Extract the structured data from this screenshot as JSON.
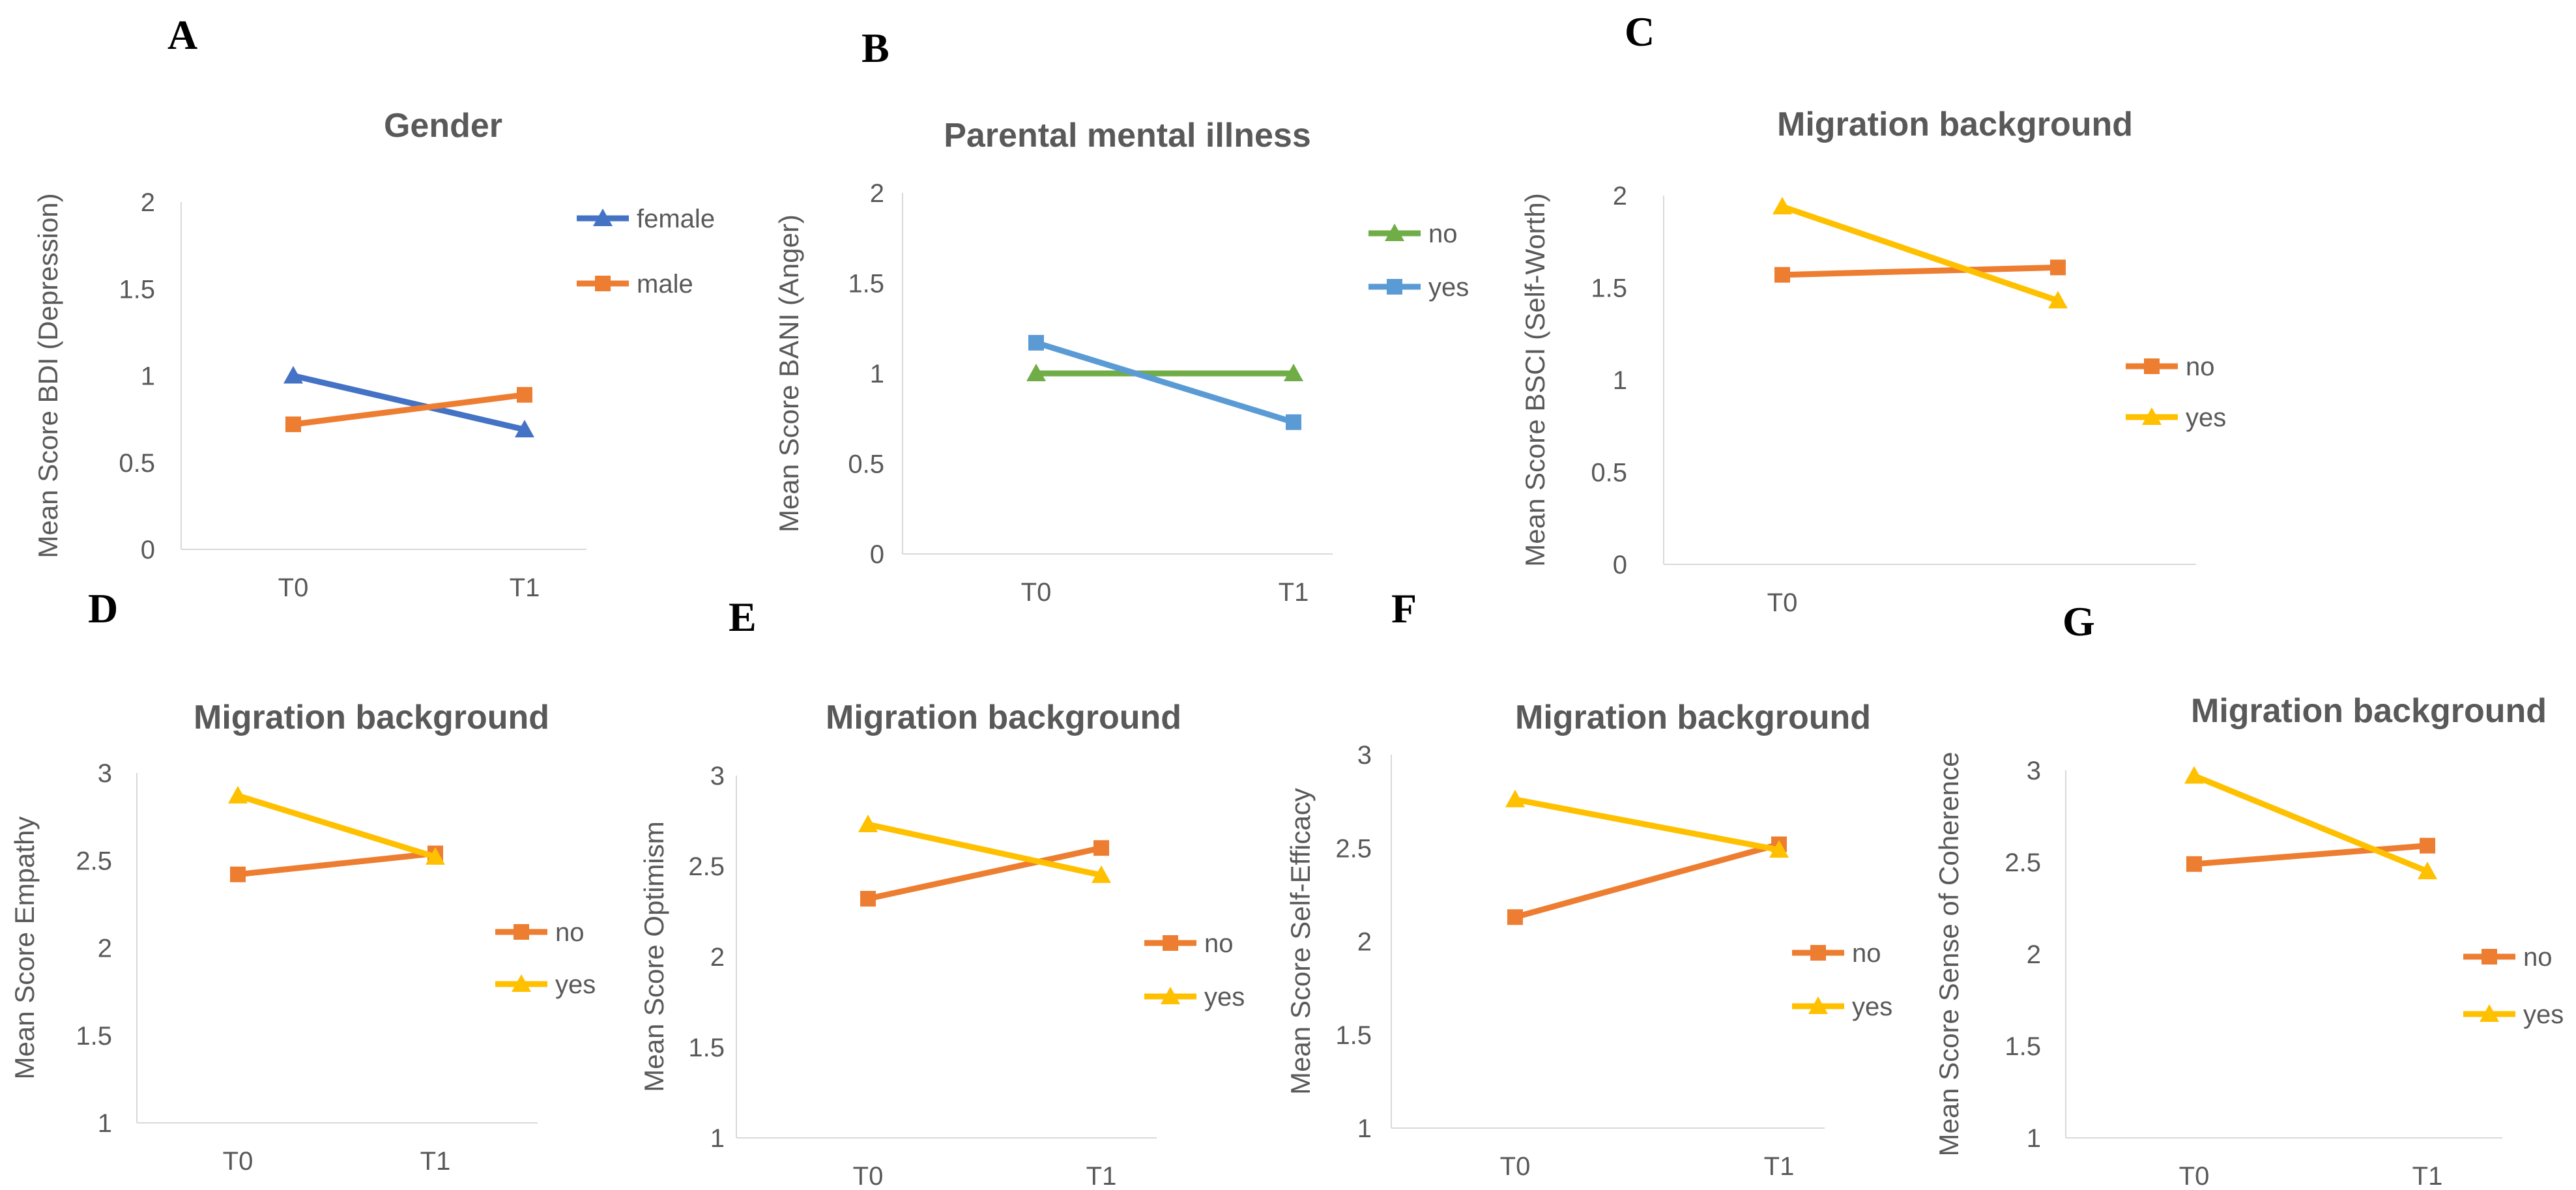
{
  "chart_data": [
    {
      "panel": "A",
      "type": "line",
      "title": "Gender",
      "xlabel": "",
      "ylabel": "Mean Score BDI (Depression)",
      "categories": [
        "T0",
        "T1"
      ],
      "yticks": [
        "0",
        "0.5",
        "1",
        "1.5",
        "2"
      ],
      "ylim": [
        0,
        2
      ],
      "legend_position": "top-right",
      "series": [
        {
          "name": "female",
          "values": [
            1.0,
            0.69
          ],
          "color": "#4472C4",
          "marker": "triangle"
        },
        {
          "name": "male",
          "values": [
            0.72,
            0.89
          ],
          "color": "#ED7D31",
          "marker": "square"
        }
      ]
    },
    {
      "panel": "B",
      "type": "line",
      "title": "Parental mental illness",
      "xlabel": "",
      "ylabel": "Mean Score BANI (Anger)",
      "categories": [
        "T0",
        "T1"
      ],
      "yticks": [
        "0",
        "0.5",
        "1",
        "1.5",
        "2"
      ],
      "ylim": [
        0,
        2
      ],
      "legend_position": "top-right",
      "series": [
        {
          "name": "no",
          "values": [
            1.0,
            1.0
          ],
          "color": "#70AD47",
          "marker": "triangle"
        },
        {
          "name": "yes",
          "values": [
            1.17,
            0.73
          ],
          "color": "#5B9BD5",
          "marker": "square"
        }
      ]
    },
    {
      "panel": "C",
      "type": "line",
      "title": "Migration background",
      "xlabel": "",
      "ylabel": "Mean Score BSCI (Self-Worth)",
      "categories": [
        "T0",
        ""
      ],
      "yticks": [
        "0",
        "0.5",
        "1",
        "1.5",
        "2"
      ],
      "ylim": [
        0,
        2
      ],
      "legend_position": "right",
      "series": [
        {
          "name": "no",
          "values": [
            1.57,
            1.61
          ],
          "color": "#ED7D31",
          "marker": "square"
        },
        {
          "name": "yes",
          "values": [
            1.94,
            1.43
          ],
          "color": "#FFC000",
          "marker": "triangle"
        }
      ]
    },
    {
      "panel": "D",
      "type": "line",
      "title": "Migration background",
      "xlabel": "",
      "ylabel": "Mean Score Empathy",
      "categories": [
        "T0",
        "T1"
      ],
      "yticks": [
        "1",
        "1.5",
        "2",
        "2.5",
        "3"
      ],
      "ylim": [
        1,
        3
      ],
      "legend_position": "right",
      "series": [
        {
          "name": "no",
          "values": [
            2.42,
            2.54
          ],
          "color": "#ED7D31",
          "marker": "square"
        },
        {
          "name": "yes",
          "values": [
            2.87,
            2.52
          ],
          "color": "#FFC000",
          "marker": "triangle"
        }
      ]
    },
    {
      "panel": "E",
      "type": "line",
      "title": "Migration background",
      "xlabel": "",
      "ylabel": "Mean Score Optimism",
      "categories": [
        "T0",
        "T1"
      ],
      "yticks": [
        "1",
        "1.5",
        "2",
        "2.5",
        "3"
      ],
      "ylim": [
        1,
        3
      ],
      "legend_position": "right",
      "series": [
        {
          "name": "no",
          "values": [
            2.32,
            2.6
          ],
          "color": "#ED7D31",
          "marker": "square"
        },
        {
          "name": "yes",
          "values": [
            2.73,
            2.45
          ],
          "color": "#FFC000",
          "marker": "triangle"
        }
      ]
    },
    {
      "panel": "F",
      "type": "line",
      "title": "Migration background",
      "xlabel": "",
      "ylabel": "Mean Score Self-Efficacy",
      "categories": [
        "T0",
        "T1"
      ],
      "yticks": [
        "1",
        "1.5",
        "2",
        "2.5",
        "3"
      ],
      "ylim": [
        1,
        3
      ],
      "legend_position": "right",
      "series": [
        {
          "name": "no",
          "values": [
            2.13,
            2.52
          ],
          "color": "#ED7D31",
          "marker": "square"
        },
        {
          "name": "yes",
          "values": [
            2.76,
            2.49
          ],
          "color": "#FFC000",
          "marker": "triangle"
        }
      ]
    },
    {
      "panel": "G",
      "type": "line",
      "title": "Migration background",
      "xlabel": "",
      "ylabel": "Mean Score Sense of Coherence",
      "categories": [
        "T0",
        "T1"
      ],
      "yticks": [
        "1",
        "1.5",
        "2",
        "2.5",
        "3"
      ],
      "ylim": [
        1,
        3
      ],
      "legend_position": "right",
      "series": [
        {
          "name": "no",
          "values": [
            2.49,
            2.59
          ],
          "color": "#ED7D31",
          "marker": "square"
        },
        {
          "name": "yes",
          "values": [
            2.97,
            2.45
          ],
          "color": "#FFC000",
          "marker": "triangle"
        }
      ]
    }
  ]
}
